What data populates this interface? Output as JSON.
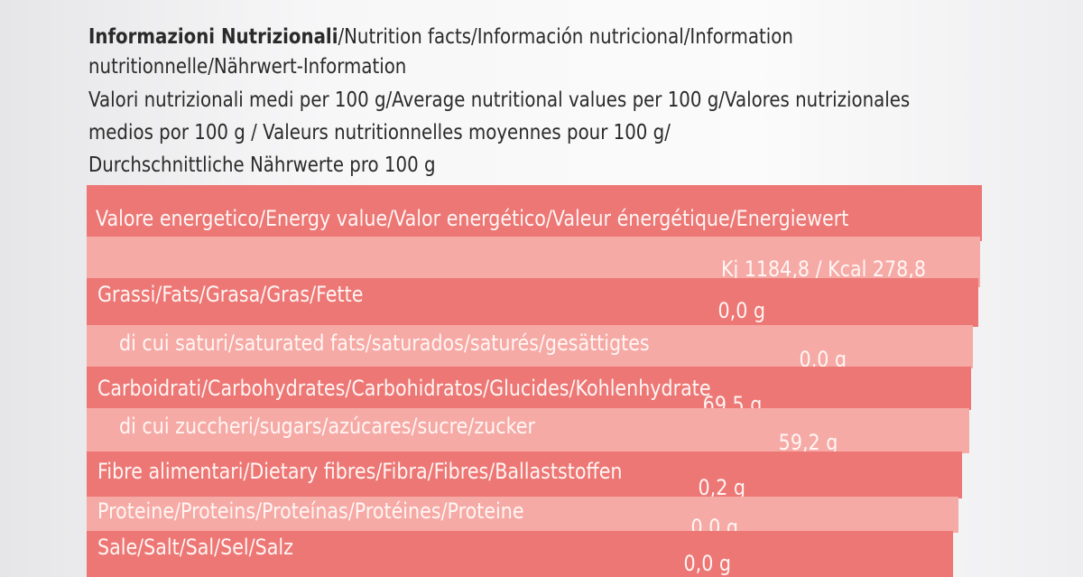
{
  "header": {
    "title": "Informazioni Nutrizionali",
    "lines": [
      "/Nutrition facts/Información nutricional/Information",
      "nutritionnelle/Nährwert-Information",
      "Valori nutrizionali medi per 100 g/Average nutritional values per 100 g/Valores nutrizionales",
      "medios por 100 g / Valeurs nutritionnelles moyennes pour 100 g/",
      "Durchschnittliche Nährwerte pro 100 g"
    ]
  },
  "table": {
    "rows": [
      {
        "label": "Valore energetico/Energy value/Valor energético/Valeur énergétique/Energiewert"
      },
      {
        "value": "Kj 1184,8 / Kcal 278,8"
      },
      {
        "label": "Grassi/Fats/Grasa/Gras/Fette",
        "value": "0,0 g"
      },
      {
        "label": "di cui saturi/saturated fats/saturados/saturés/gesättigtes",
        "value": "0,0 g"
      },
      {
        "label": "Carboidrati/Carbohydrates/Carbohidratos/Glucides/Kohlenhydrate",
        "value": "69,5 g"
      },
      {
        "label": "di cui zuccheri/sugars/azúcares/sucre/zucker",
        "value": "59,2 g"
      },
      {
        "label": "Fibre alimentari/Dietary fibres/Fibra/Fibres/Ballaststoffen",
        "value": "0,2 g"
      },
      {
        "label": "Proteine/Proteins/Proteínas/Protéines/Proteine",
        "value": "0,0 g"
      },
      {
        "label": "Sale/Salt/Sal/Sel/Salz",
        "value": "0,0 g"
      }
    ]
  }
}
